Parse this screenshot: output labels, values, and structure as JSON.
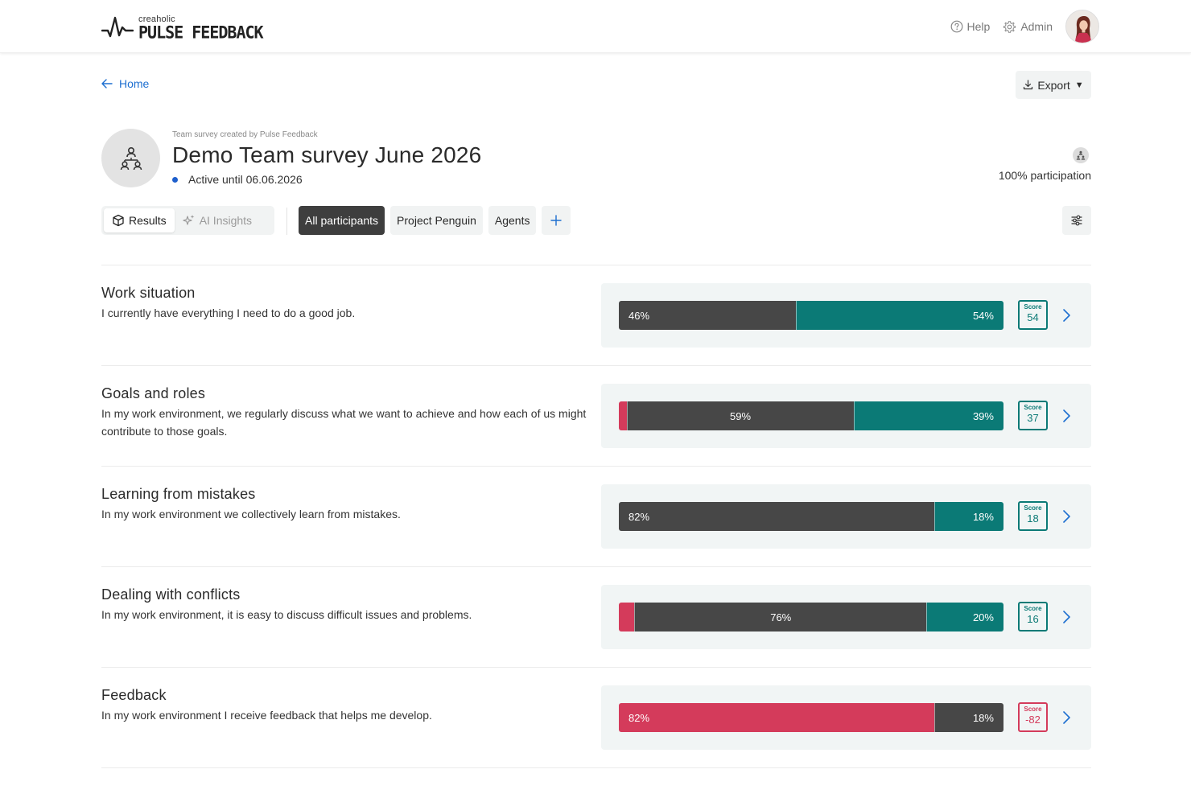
{
  "header": {
    "logo_small": "creaholic",
    "logo_big": "PULSE FEEDBACK",
    "help_label": "Help",
    "admin_label": "Admin"
  },
  "nav": {
    "home_label": "Home",
    "export_label": "Export"
  },
  "survey": {
    "created_by": "Team survey created by Pulse Feedback",
    "title": "Demo Team survey June 2026",
    "status": "Active until 06.06.2026",
    "participation": "100% participation"
  },
  "view_toggle": {
    "results_label": "Results",
    "insights_label": "AI Insights"
  },
  "filters": [
    "All participants",
    "Project Penguin",
    "Agents"
  ],
  "colors": {
    "negative": "#d43b5b",
    "neutral": "#474747",
    "positive": "#0b7a76",
    "link": "#1e6fd0"
  },
  "score_label": "Score",
  "questions": [
    {
      "title": "Work situation",
      "text": "I currently have everything I need to do a good job.",
      "negative": 0,
      "neutral": 46,
      "positive": 54,
      "neutral_label": "46%",
      "positive_label": "54%",
      "negative_label": "",
      "score": "54",
      "score_sign": "positive"
    },
    {
      "title": "Goals and roles",
      "text": "In my work environment, we regularly discuss what we want to achieve and how each of us might contribute to those goals.",
      "negative": 2,
      "neutral": 59,
      "positive": 39,
      "neutral_label": "59%",
      "positive_label": "39%",
      "negative_label": "",
      "score": "37",
      "score_sign": "positive"
    },
    {
      "title": "Learning from mistakes",
      "text": "In my work environment we collectively learn from mistakes.",
      "negative": 0,
      "neutral": 82,
      "positive": 18,
      "neutral_label": "82%",
      "positive_label": "18%",
      "negative_label": "",
      "score": "18",
      "score_sign": "positive"
    },
    {
      "title": "Dealing with conflicts",
      "text": "In my work environment, it is easy to discuss difficult issues and problems.",
      "negative": 4,
      "neutral": 76,
      "positive": 20,
      "neutral_label": "76%",
      "positive_label": "20%",
      "negative_label": "",
      "score": "16",
      "score_sign": "positive"
    },
    {
      "title": "Feedback",
      "text": "In my work environment I receive feedback that helps me develop.",
      "negative": 82,
      "neutral": 18,
      "positive": 0,
      "neutral_label": "18%",
      "positive_label": "",
      "negative_label": "82%",
      "score": "-82",
      "score_sign": "negative"
    }
  ]
}
